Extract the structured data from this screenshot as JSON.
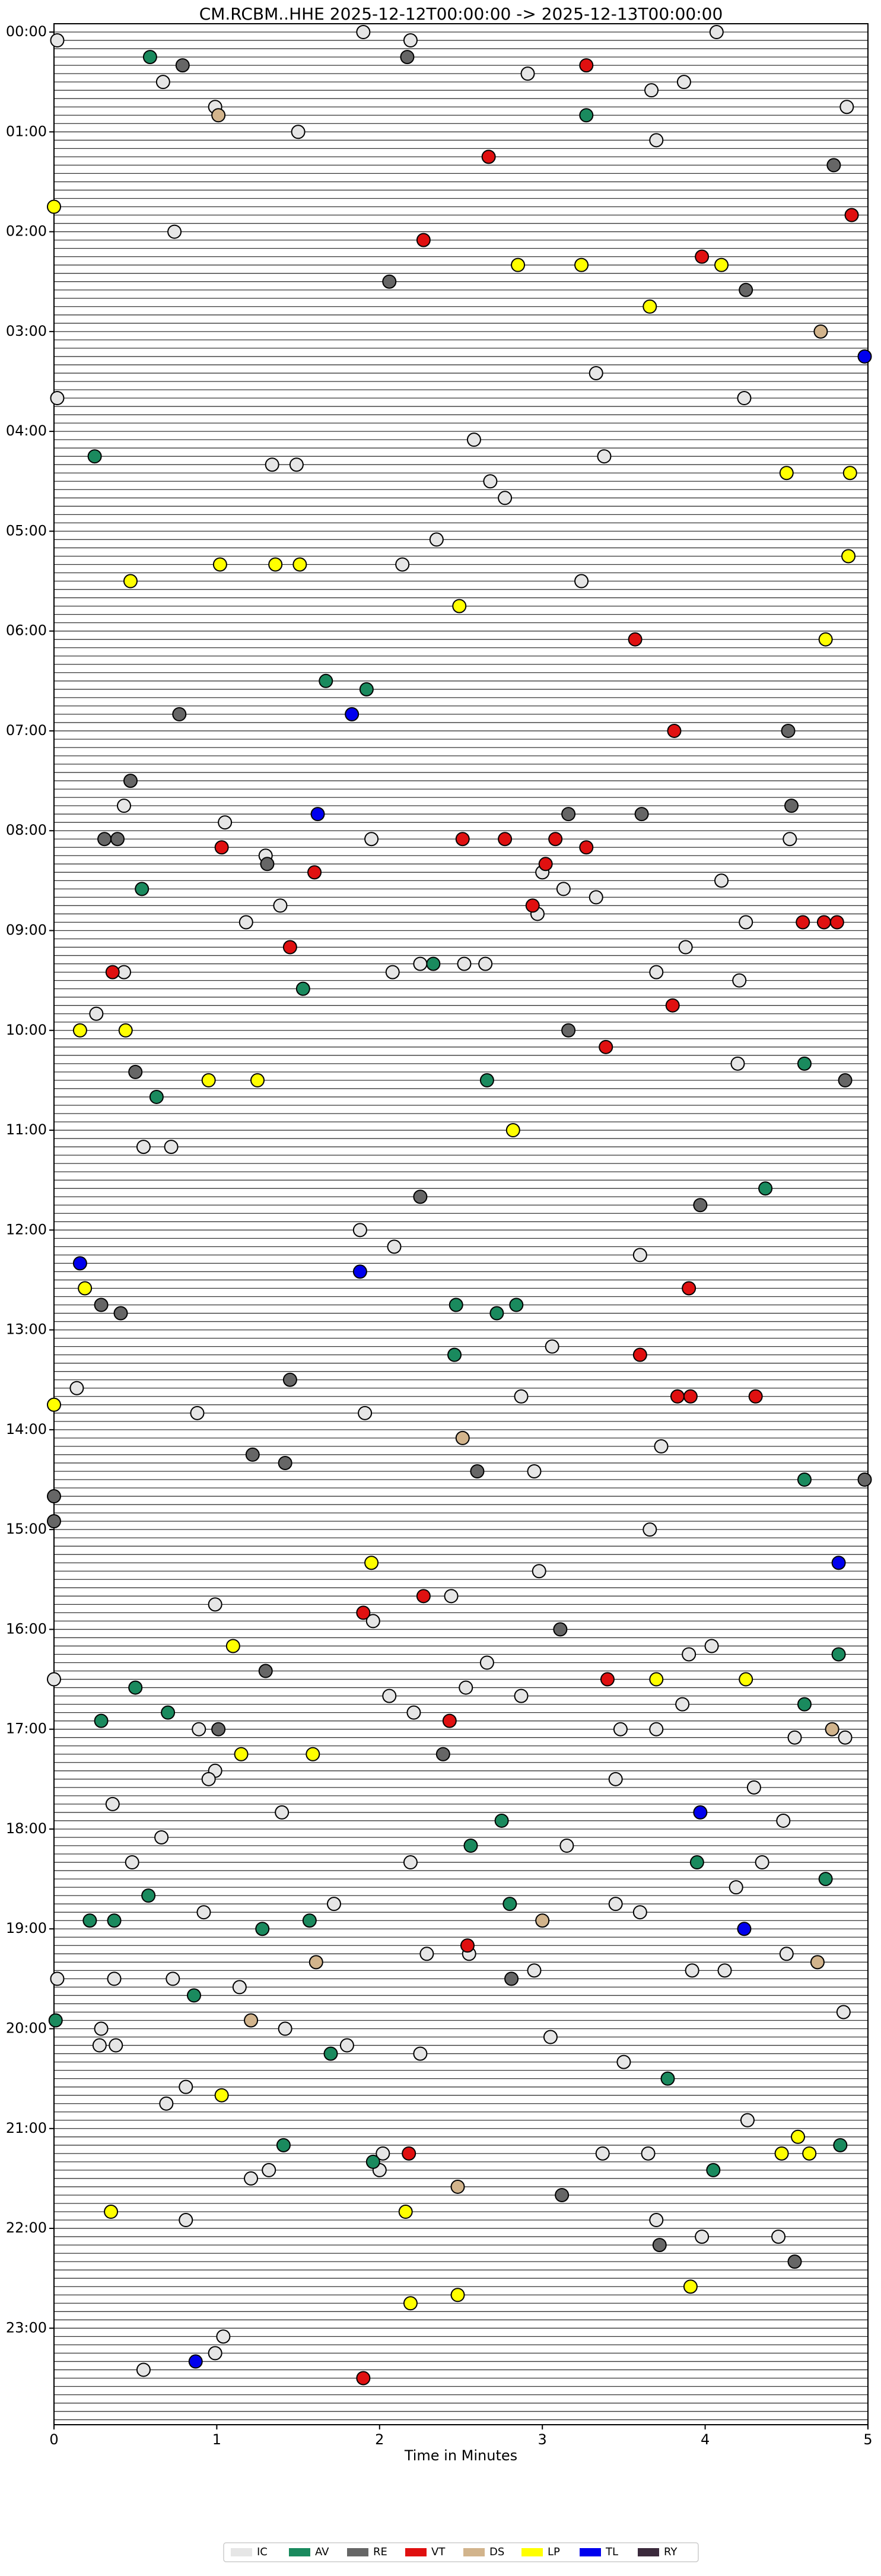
{
  "chart_data": {
    "type": "scatter",
    "title": "CM.RCBM..HHE  2025-12-12T00:00:00 -> 2025-12-13T00:00:00",
    "xlabel": "Time in Minutes",
    "xlim": [
      0,
      5
    ],
    "xticks": [
      0,
      1,
      2,
      3,
      4,
      5
    ],
    "ylim": [
      -5,
      1438
    ],
    "y_inverted": true,
    "yticks": [
      {
        "value": 0,
        "label": "00:00"
      },
      {
        "value": 60,
        "label": "01:00"
      },
      {
        "value": 120,
        "label": "02:00"
      },
      {
        "value": 180,
        "label": "03:00"
      },
      {
        "value": 240,
        "label": "04:00"
      },
      {
        "value": 300,
        "label": "05:00"
      },
      {
        "value": 360,
        "label": "06:00"
      },
      {
        "value": 420,
        "label": "07:00"
      },
      {
        "value": 480,
        "label": "08:00"
      },
      {
        "value": 540,
        "label": "09:00"
      },
      {
        "value": 600,
        "label": "10:00"
      },
      {
        "value": 660,
        "label": "11:00"
      },
      {
        "value": 720,
        "label": "12:00"
      },
      {
        "value": 780,
        "label": "13:00"
      },
      {
        "value": 840,
        "label": "14:00"
      },
      {
        "value": 900,
        "label": "15:00"
      },
      {
        "value": 960,
        "label": "16:00"
      },
      {
        "value": 1020,
        "label": "17:00"
      },
      {
        "value": 1080,
        "label": "18:00"
      },
      {
        "value": 1140,
        "label": "19:00"
      },
      {
        "value": 1200,
        "label": "20:00"
      },
      {
        "value": 1260,
        "label": "21:00"
      },
      {
        "value": 1320,
        "label": "22:00"
      },
      {
        "value": 1380,
        "label": "23:00"
      }
    ],
    "legend": "lower center",
    "series": [
      {
        "name": "IC",
        "color": "#e6e6e6",
        "x": [
          0.02,
          1.9,
          4.07,
          2.19,
          2.91,
          0.67,
          3.87,
          3.67,
          0.99,
          4.87,
          1.5,
          3.7,
          0.74,
          3.33,
          0.02,
          4.24,
          2.58,
          1.34,
          1.49,
          3.38,
          2.68,
          2.77,
          2.35,
          2.14,
          3.24,
          0.43,
          1.05,
          1.95,
          4.52,
          1.3,
          3.0,
          4.1,
          3.13,
          3.33,
          1.39,
          2.97,
          1.18,
          4.25,
          3.88,
          0.43,
          2.25,
          2.52,
          2.65,
          2.08,
          3.7,
          4.21,
          0.26,
          4.2,
          0.55,
          0.72,
          1.88,
          2.09,
          3.6,
          3.06,
          0.14,
          2.87,
          0.88,
          1.91,
          3.73,
          2.95,
          3.66,
          2.98,
          2.44,
          0.99,
          1.96,
          4.04,
          3.9,
          2.66,
          0,
          2.53,
          2.06,
          2.87,
          3.86,
          2.21,
          0.89,
          3.48,
          3.7,
          4.55,
          4.86,
          0.99,
          0.95,
          3.45,
          4.3,
          0.36,
          1.4,
          4.48,
          0.66,
          3.15,
          0.48,
          2.19,
          4.35,
          4.19,
          1.72,
          3.45,
          3.6,
          0.92,
          2.29,
          2.55,
          4.5,
          2.95,
          3.92,
          4.12,
          0.02,
          0.37,
          0.73,
          1.14,
          4.85,
          0.29,
          1.42,
          3.05,
          0.28,
          0.38,
          1.8,
          2.25,
          3.5,
          0.81,
          0.69,
          4.26,
          2.02,
          3.37,
          3.65,
          2.0,
          1.32,
          1.21,
          0.81,
          3.7,
          3.98,
          4.45,
          1.04,
          0.99,
          0.55
        ],
        "values": [
          5,
          0,
          0,
          5,
          25,
          30,
          30,
          35,
          45,
          45,
          60,
          65,
          120,
          205,
          220,
          220,
          245,
          260,
          260,
          255,
          270,
          280,
          305,
          320,
          330,
          465,
          475,
          485,
          485,
          495,
          505,
          510,
          515,
          520,
          525,
          530,
          535,
          535,
          550,
          565,
          560,
          560,
          560,
          565,
          565,
          570,
          590,
          620,
          670,
          670,
          720,
          730,
          735,
          790,
          815,
          820,
          830,
          830,
          850,
          865,
          900,
          925,
          940,
          945,
          955,
          970,
          975,
          980,
          990,
          995,
          1000,
          1000,
          1005,
          1010,
          1020,
          1020,
          1020,
          1025,
          1025,
          1045,
          1050,
          1050,
          1055,
          1065,
          1070,
          1075,
          1085,
          1090,
          1100,
          1100,
          1100,
          1115,
          1125,
          1125,
          1130,
          1130,
          1155,
          1155,
          1155,
          1165,
          1165,
          1165,
          1170,
          1170,
          1170,
          1175,
          1190,
          1200,
          1200,
          1205,
          1210,
          1210,
          1210,
          1215,
          1220,
          1235,
          1245,
          1255,
          1275,
          1275,
          1275,
          1285,
          1285,
          1290,
          1315,
          1315,
          1325,
          1325,
          1385,
          1395,
          1405
        ]
      },
      {
        "name": "AV",
        "color": "#1a8a5e",
        "x": [
          0.59,
          3.27,
          0.25,
          1.67,
          1.92,
          0.54,
          2.33,
          1.53,
          4.61,
          2.66,
          0.63,
          4.37,
          2.47,
          2.72,
          2.84,
          2.46,
          4.61,
          4.82,
          0.5,
          4.61,
          0.7,
          0.29,
          2.75,
          2.56,
          3.95,
          4.74,
          0.58,
          2.8,
          0.22,
          0.37,
          1.57,
          1.28,
          0.86,
          0.01,
          1.7,
          3.77,
          1.41,
          1.96,
          4.83,
          4.05
        ],
        "values": [
          15,
          50,
          255,
          390,
          395,
          515,
          560,
          575,
          620,
          630,
          640,
          695,
          765,
          770,
          765,
          795,
          870,
          975,
          995,
          1005,
          1010,
          1015,
          1075,
          1090,
          1100,
          1110,
          1120,
          1125,
          1135,
          1135,
          1135,
          1140,
          1180,
          1195,
          1215,
          1230,
          1270,
          1280,
          1270,
          1285
        ]
      },
      {
        "name": "RE",
        "color": "#666666",
        "x": [
          0.79,
          2.17,
          4.79,
          2.06,
          4.25,
          0.77,
          4.51,
          0.47,
          3.16,
          3.61,
          4.53,
          0.31,
          0.39,
          1.31,
          3.16,
          0.5,
          4.86,
          2.25,
          3.97,
          0.29,
          0.41,
          1.45,
          1.22,
          1.42,
          2.6,
          4.98,
          0,
          0,
          3.11,
          1.3,
          1.01,
          2.39,
          2.81,
          3.12,
          3.72,
          4.55
        ],
        "values": [
          20,
          15,
          80,
          150,
          155,
          410,
          420,
          450,
          470,
          470,
          465,
          485,
          485,
          500,
          600,
          625,
          630,
          700,
          705,
          765,
          770,
          810,
          855,
          860,
          865,
          870,
          880,
          895,
          960,
          985,
          1020,
          1035,
          1170,
          1300,
          1330,
          1340
        ]
      },
      {
        "name": "VT",
        "color": "#e01010",
        "x": [
          3.27,
          2.67,
          4.9,
          2.27,
          3.98,
          3.57,
          3.81,
          2.51,
          2.77,
          3.08,
          1.03,
          3.27,
          3.02,
          1.6,
          2.94,
          4.6,
          4.73,
          4.81,
          1.45,
          0.36,
          3.8,
          3.39,
          3.9,
          3.6,
          3.83,
          3.91,
          4.31,
          2.27,
          1.9,
          3.4,
          2.43,
          2.54,
          2.18,
          1.9
        ],
        "values": [
          20,
          75,
          110,
          125,
          135,
          365,
          420,
          485,
          485,
          485,
          490,
          490,
          500,
          505,
          525,
          535,
          535,
          535,
          550,
          565,
          585,
          610,
          755,
          795,
          820,
          820,
          820,
          940,
          950,
          990,
          1015,
          1150,
          1275,
          1410
        ]
      },
      {
        "name": "DS",
        "color": "#d2b48c",
        "x": [
          1.01,
          4.71,
          2.51,
          4.78,
          3.0,
          1.61,
          4.69,
          1.21,
          2.48
        ],
        "values": [
          50,
          180,
          845,
          1020,
          1135,
          1160,
          1160,
          1195,
          1295
        ]
      },
      {
        "name": "LP",
        "color": "#ffff00",
        "x": [
          0,
          2.85,
          3.24,
          4.1,
          3.66,
          4.5,
          4.89,
          4.88,
          1.02,
          1.36,
          1.51,
          0.47,
          2.49,
          4.74,
          0.16,
          0.44,
          0.95,
          1.25,
          2.82,
          0.19,
          0,
          1.95,
          1.1,
          3.7,
          4.25,
          1.15,
          1.59,
          1.03,
          4.57,
          4.47,
          4.64,
          0.35,
          2.16,
          3.91,
          2.48,
          2.19
        ],
        "values": [
          105,
          140,
          140,
          140,
          165,
          265,
          265,
          315,
          320,
          320,
          320,
          330,
          345,
          365,
          600,
          600,
          630,
          630,
          660,
          755,
          825,
          920,
          970,
          990,
          990,
          1035,
          1035,
          1240,
          1265,
          1275,
          1275,
          1310,
          1310,
          1355,
          1360,
          1365
        ]
      },
      {
        "name": "TL",
        "color": "#0000ee",
        "x": [
          4.98,
          1.83,
          1.62,
          0.16,
          1.88,
          4.82,
          3.97,
          4.24,
          0.87
        ],
        "values": [
          195,
          410,
          470,
          740,
          745,
          920,
          1070,
          1140,
          1400
        ]
      },
      {
        "name": "RY",
        "color": "#3b2a3c",
        "x": [],
        "values": []
      }
    ]
  }
}
